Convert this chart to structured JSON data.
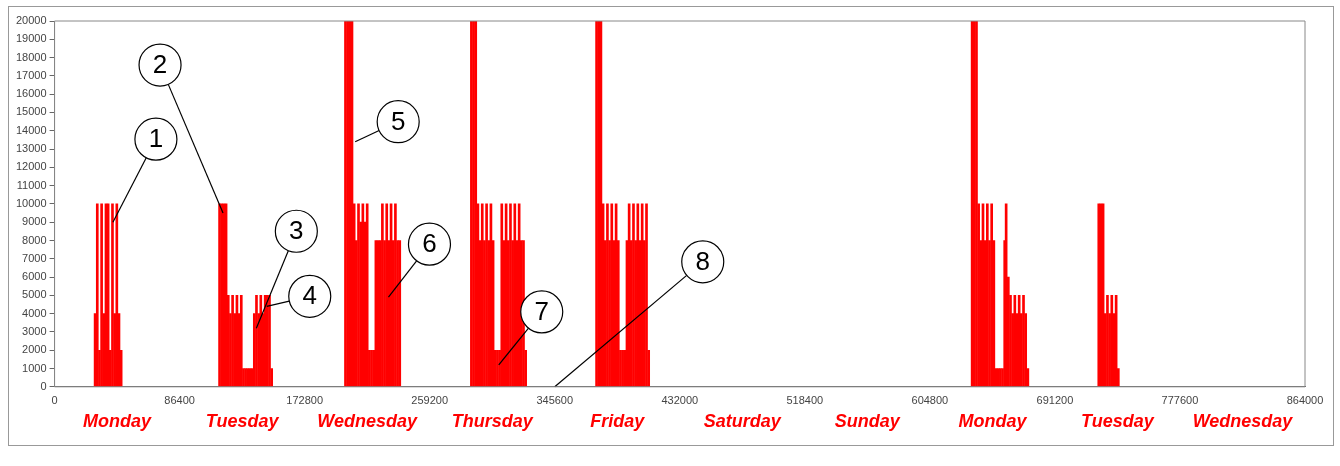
{
  "chart_data": {
    "type": "bar",
    "x": [
      28000,
      29500,
      31000,
      32500,
      34000,
      35500,
      37000,
      38500,
      40000,
      41500,
      43000,
      44500,
      46000,
      114000,
      115500,
      117000,
      118500,
      120000,
      121500,
      123000,
      124500,
      126000,
      127500,
      129000,
      130500,
      132000,
      133500,
      135000,
      136500,
      138000,
      139500,
      141000,
      142500,
      144000,
      145500,
      147000,
      148500,
      150000,
      201000,
      202500,
      204000,
      205500,
      207000,
      208500,
      210000,
      211500,
      213000,
      214500,
      216000,
      217500,
      219000,
      220500,
      222000,
      223500,
      225000,
      226500,
      228000,
      229500,
      231000,
      232500,
      234000,
      235500,
      237000,
      238500,
      288000,
      289500,
      291000,
      292500,
      294000,
      295500,
      297000,
      298500,
      300000,
      301500,
      303000,
      304500,
      306000,
      307500,
      309000,
      310500,
      312000,
      313500,
      315000,
      316500,
      318000,
      319500,
      321000,
      322500,
      324000,
      325500,
      374500,
      376000,
      377500,
      379000,
      380500,
      382000,
      383500,
      385000,
      386500,
      388000,
      389500,
      391000,
      392500,
      394000,
      395500,
      397000,
      398500,
      400000,
      401500,
      403000,
      404500,
      406000,
      407500,
      409000,
      410500,
      634000,
      635500,
      637000,
      638500,
      640000,
      641500,
      643000,
      644500,
      646000,
      647500,
      649000,
      650500,
      652000,
      653500,
      655000,
      656500,
      657500,
      659000,
      660500,
      662000,
      663500,
      665000,
      666500,
      668000,
      669500,
      671000,
      672500,
      721500,
      723000,
      724500,
      726000,
      727500,
      729000,
      730500,
      732000,
      733500,
      735000
    ],
    "values": [
      4000,
      10000,
      2000,
      10000,
      4000,
      10000,
      10000,
      2000,
      10000,
      4000,
      10000,
      4000,
      2000,
      10000,
      10000,
      10000,
      10000,
      5000,
      4000,
      5000,
      4000,
      5000,
      4000,
      5000,
      1000,
      1000,
      1000,
      1000,
      1000,
      4000,
      5000,
      4000,
      5000,
      4000,
      5000,
      5000,
      5000,
      1000,
      20000,
      20000,
      20000,
      20000,
      10000,
      8000,
      10000,
      9000,
      10000,
      9000,
      10000,
      2000,
      2000,
      2000,
      8000,
      8000,
      8000,
      10000,
      8000,
      10000,
      8000,
      10000,
      8000,
      10000,
      8000,
      8000,
      20000,
      20000,
      20000,
      10000,
      8000,
      10000,
      8000,
      10000,
      8000,
      10000,
      8000,
      2000,
      2000,
      2000,
      10000,
      8000,
      10000,
      8000,
      10000,
      8000,
      10000,
      8000,
      10000,
      8000,
      8000,
      2000,
      20000,
      20000,
      20000,
      10000,
      8000,
      10000,
      8000,
      10000,
      8000,
      10000,
      8000,
      2000,
      2000,
      2000,
      8000,
      10000,
      8000,
      10000,
      8000,
      10000,
      8000,
      10000,
      8000,
      10000,
      2000,
      20000,
      20000,
      20000,
      10000,
      8000,
      10000,
      8000,
      10000,
      8000,
      10000,
      8000,
      1000,
      1000,
      1000,
      1000,
      8000,
      10000,
      6000,
      5000,
      4000,
      5000,
      4000,
      5000,
      4000,
      5000,
      4000,
      1000,
      10000,
      10000,
      10000,
      4000,
      5000,
      4000,
      5000,
      4000,
      5000,
      1000
    ],
    "color": "#ff0000",
    "xlim": [
      0,
      864000
    ],
    "xticks": [
      0,
      86400,
      172800,
      259200,
      345600,
      432000,
      518400,
      604800,
      691200,
      777600,
      864000
    ],
    "ylim": [
      0,
      20000
    ],
    "yticks": [
      0,
      1000,
      2000,
      3000,
      4000,
      5000,
      6000,
      7000,
      8000,
      9000,
      10000,
      11000,
      12000,
      13000,
      14000,
      15000,
      16000,
      17000,
      18000,
      19000,
      20000
    ],
    "annotations": [
      {
        "text": "1",
        "x": 40300,
        "y": 9000
      },
      {
        "text": "2",
        "x": 116400,
        "y": 9500
      },
      {
        "text": "3",
        "x": 139400,
        "y": 3200
      },
      {
        "text": "4",
        "x": 146600,
        "y": 4400
      },
      {
        "text": "5",
        "x": 207700,
        "y": 13400
      },
      {
        "text": "6",
        "x": 230700,
        "y": 4900
      },
      {
        "text": "7",
        "x": 306900,
        "y": 1200
      },
      "8",
      "Monday",
      "Tuesday",
      "Wednesday",
      "Thursday",
      "Friday",
      "Saturday",
      "Sunday",
      "Monday",
      "Tuesday",
      "Wednesday"
    ],
    "grid": false,
    "legend": false
  }
}
